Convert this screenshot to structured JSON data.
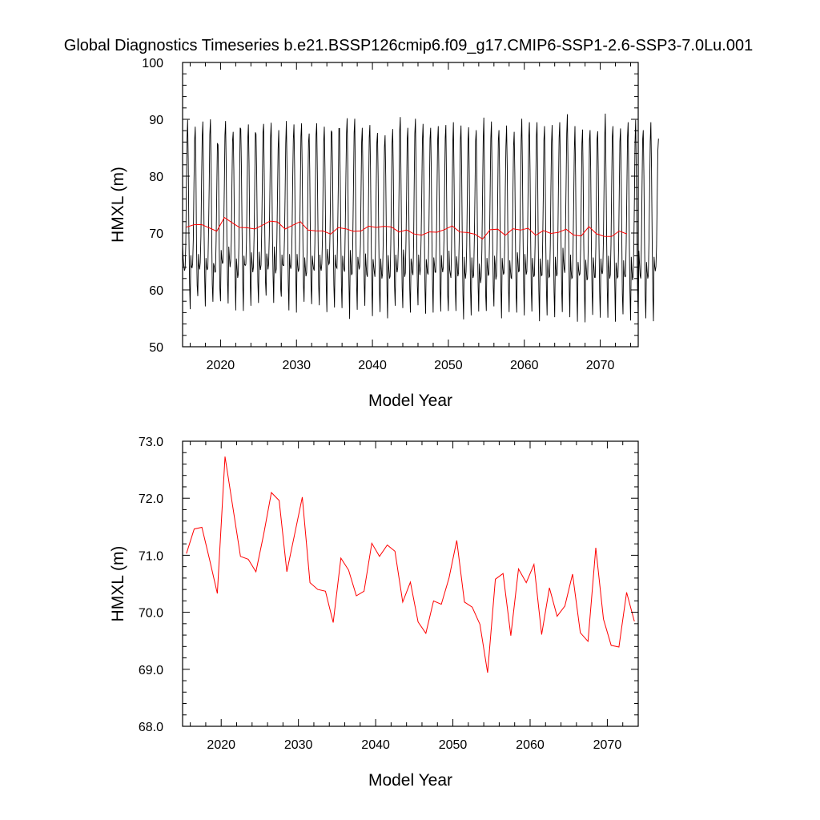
{
  "title": "Global Diagnostics Timeseries b.e21.BSSP126cmip6.f09_g17.CMIP6-SSP1-2.6-SSP3-7.0Lu.001",
  "chart_data": [
    {
      "type": "line",
      "xlabel": "Model Year",
      "ylabel": "HMXL (m)",
      "xlim": [
        2015,
        2075
      ],
      "ylim": [
        50,
        100
      ],
      "xticks": [
        2020,
        2030,
        2040,
        2050,
        2060,
        2070
      ],
      "yticks": [
        50,
        60,
        70,
        80,
        90,
        100
      ],
      "ytick_labels": [
        "50",
        "60",
        "70",
        "80",
        "90",
        "100"
      ],
      "grid": false,
      "series": [
        {
          "color": "#000000",
          "resolution": "monthly",
          "x_start": 2015.0,
          "x_step": 0.0833333,
          "values": [
            68.1,
            65.5,
            64.2,
            63.4,
            63.8,
            68.0,
            77.6,
            86.4,
            89.9,
            82.5,
            69.9,
            61.2,
            56.6,
            66.1,
            64.0,
            63.9,
            64.6,
            68.9,
            78.5,
            86.2,
            88.7,
            82.4,
            68.2,
            60.8,
            58.9,
            66.3,
            64.3,
            63.6,
            64.8,
            69.4,
            79.0,
            86.9,
            89.6,
            80.8,
            69.7,
            61.5,
            57.1,
            65.6,
            64.0,
            63.5,
            64.0,
            70.1,
            77.8,
            87.3,
            90.0,
            82.2,
            69.5,
            60.9,
            57.9,
            64.7,
            64.2,
            63.1,
            63.2,
            68.7,
            77.5,
            85.8,
            85.5,
            79.0,
            67.3,
            60.2,
            58.0,
            67.0,
            65.5,
            64.6,
            64.9,
            70.8,
            78.8,
            87.2,
            89.7,
            81.5,
            69.4,
            61.8,
            57.6,
            67.6,
            65.7,
            64.0,
            65.1,
            68.8,
            78.0,
            86.2,
            87.8,
            81.2,
            70.2,
            62.3,
            56.4,
            65.5,
            63.9,
            62.1,
            62.7,
            67.6,
            78.1,
            88.5,
            88.3,
            81.4,
            70.2,
            61.3,
            56.3,
            66.0,
            64.5,
            64.3,
            64.5,
            68.7,
            77.5,
            86.4,
            89.1,
            82.3,
            70.2,
            60.7,
            57.2,
            66.6,
            64.7,
            63.1,
            64.0,
            69.5,
            78.0,
            87.7,
            87.4,
            81.2,
            70.1,
            61.4,
            57.7,
            66.7,
            64.6,
            63.5,
            64.4,
            70.3,
            78.9,
            87.7,
            89.2,
            81.1,
            70.0,
            61.5,
            59.0,
            66.4,
            65.4,
            63.6,
            64.6,
            69.6,
            77.9,
            86.6,
            89.4,
            81.8,
            70.0,
            62.5,
            57.7,
            67.6,
            65.6,
            62.9,
            63.7,
            69.2,
            76.5,
            84.7,
            88.1,
            80.6,
            67.9,
            60.2,
            58.8,
            66.2,
            64.5,
            64.3,
            64.3,
            68.8,
            76.3,
            85.7,
            89.7,
            81.8,
            70.3,
            61.1,
            56.4,
            66.3,
            64.4,
            63.7,
            64.4,
            69.9,
            79.3,
            86.5,
            89.1,
            81.7,
            70.3,
            61.7,
            56.0,
            66.3,
            64.4,
            63.2,
            63.7,
            68.7,
            77.5,
            87.0,
            89.3,
            81.0,
            69.2,
            61.0,
            57.9,
            65.7,
            64.0,
            62.4,
            63.0,
            68.2,
            78.3,
            86.0,
            87.5,
            81.1,
            69.0,
            60.7,
            57.5,
            66.0,
            64.6,
            63.7,
            63.4,
            68.2,
            79.1,
            87.3,
            89.3,
            80.6,
            70.5,
            60.9,
            57.3,
            66.2,
            64.0,
            63.4,
            64.6,
            69.3,
            77.8,
            86.0,
            88.7,
            81.6,
            70.1,
            60.8,
            56.1,
            67.2,
            65.7,
            64.5,
            64.7,
            69.9,
            78.8,
            88.0,
            87.7,
            81.3,
            69.2,
            60.8,
            56.9,
            66.2,
            64.6,
            64.0,
            63.8,
            69.8,
            77.8,
            88.4,
            88.4,
            80.3,
            69.8,
            60.4,
            56.8,
            66.0,
            64.4,
            63.6,
            63.2,
            70.4,
            79.3,
            87.5,
            90.2,
            82.1,
            69.1,
            60.9,
            54.9,
            67.0,
            65.0,
            62.6,
            62.9,
            69.2,
            78.3,
            87.6,
            90.1,
            81.0,
            68.7,
            61.1,
            56.5,
            65.8,
            64.7,
            63.6,
            64.2,
            68.0,
            77.6,
            86.0,
            88.5,
            80.4,
            69.5,
            61.3,
            57.2,
            66.4,
            64.3,
            62.7,
            62.3,
            68.5,
            77.4,
            86.8,
            89.0,
            81.1,
            69.4,
            60.6,
            55.4,
            65.4,
            64.2,
            63.0,
            62.3,
            68.5,
            78.1,
            85.9,
            87.6,
            80.1,
            68.8,
            60.1,
            56.1,
            65.5,
            63.9,
            62.0,
            62.8,
            68.1,
            77.4,
            85.1,
            87.2,
            80.1,
            69.1,
            59.6,
            55.0,
            66.1,
            63.7,
            62.0,
            62.4,
            68.0,
            76.9,
            85.8,
            88.3,
            80.4,
            68.6,
            60.6,
            57.2,
            66.2,
            64.4,
            63.1,
            63.9,
            68.1,
            77.5,
            87.9,
            90.4,
            82.1,
            69.5,
            60.4,
            56.8,
            67.1,
            65.5,
            62.3,
            63.0,
            68.6,
            77.2,
            86.5,
            88.5,
            80.2,
            69.0,
            60.1,
            56.0,
            65.5,
            64.7,
            63.1,
            62.6,
            68.0,
            78.0,
            87.5,
            90.1,
            81.6,
            68.8,
            60.7,
            57.3,
            66.2,
            64.1,
            62.6,
            63.8,
            69.2,
            77.2,
            86.4,
            89.2,
            81.8,
            69.8,
            60.2,
            55.8,
            65.4,
            64.3,
            63.0,
            62.7,
            68.3,
            77.3,
            86.6,
            88.5,
            80.8,
            68.4,
            60.4,
            56.0,
            65.7,
            64.5,
            63.1,
            63.1,
            67.8,
            76.9,
            86.3,
            88.8,
            80.4,
            68.9,
            60.2,
            56.2,
            66.1,
            64.1,
            63.1,
            64.0,
            68.7,
            78.0,
            86.7,
            89.0,
            80.3,
            67.8,
            59.1,
            56.3,
            66.9,
            63.6,
            62.8,
            62.1,
            67.6,
            77.2,
            85.6,
            89.5,
            79.8,
            68.8,
            60.2,
            56.3,
            65.9,
            64.4,
            62.4,
            63.0,
            68.6,
            76.6,
            86.3,
            88.9,
            81.4,
            68.5,
            59.2,
            54.8,
            65.8,
            63.1,
            62.0,
            63.2,
            67.7,
            76.7,
            86.2,
            88.6,
            80.4,
            67.9,
            59.8,
            55.5,
            65.7,
            63.3,
            62.1,
            62.6,
            68.6,
            76.7,
            86.2,
            88.1,
            80.6,
            68.7,
            60.5,
            56.2,
            64.6,
            62.8,
            61.2,
            62.4,
            67.3,
            76.8,
            86.2,
            90.3,
            80.9,
            68.3,
            59.1,
            56.3,
            65.6,
            64.0,
            62.5,
            62.8,
            68.5,
            77.4,
            86.6,
            89.6,
            81.3,
            68.6,
            60.4,
            57.1,
            66.0,
            64.5,
            61.8,
            62.5,
            67.2,
            77.3,
            86.3,
            88.1,
            80.4,
            67.7,
            60.3,
            55.0,
            65.6,
            64.0,
            62.7,
            63.0,
            68.1,
            77.6,
            85.3,
            88.9,
            81.9,
            69.6,
            60.5,
            56.1,
            65.2,
            63.5,
            62.1,
            62.0,
            67.2,
            76.4,
            85.2,
            87.8,
            80.6,
            68.6,
            59.2,
            56.0,
            66.6,
            65.3,
            63.2,
            63.3,
            68.9,
            76.9,
            86.3,
            90.1,
            81.5,
            69.0,
            60.3,
            55.5,
            66.3,
            64.5,
            62.7,
            63.2,
            68.3,
            77.9,
            86.6,
            89.5,
            81.2,
            68.7,
            60.2,
            56.2,
            65.6,
            63.7,
            62.3,
            62.6,
            67.8,
            77.7,
            86.9,
            89.5,
            82.4,
            69.0,
            59.8,
            54.5,
            65.5,
            63.8,
            62.5,
            62.6,
            68.6,
            77.0,
            86.3,
            88.8,
            80.4,
            67.9,
            59.9,
            55.5,
            65.3,
            63.1,
            62.2,
            62.4,
            67.9,
            77.0,
            85.8,
            89.0,
            81.4,
            68.3,
            59.6,
            55.2,
            65.8,
            63.7,
            62.4,
            62.8,
            68.4,
            78.4,
            86.7,
            89.5,
            81.7,
            68.7,
            60.0,
            56.1,
            67.4,
            65.2,
            63.7,
            63.0,
            69.9,
            78.2,
            87.5,
            90.9,
            82.1,
            69.8,
            59.9,
            55.2,
            66.2,
            63.4,
            62.0,
            62.2,
            67.1,
            75.3,
            84.5,
            88.8,
            80.1,
            67.4,
            59.7,
            54.4,
            64.9,
            63.5,
            62.6,
            62.8,
            67.4,
            76.5,
            85.8,
            88.2,
            80.1,
            67.9,
            59.8,
            54.3,
            65.3,
            63.7,
            61.7,
            62.0,
            67.7,
            75.4,
            86.4,
            88.1,
            80.7,
            67.6,
            60.0,
            55.6,
            65.7,
            64.0,
            62.2,
            62.2,
            67.6,
            77.1,
            86.5,
            87.9,
            80.1,
            68.3,
            59.7,
            55.1,
            65.5,
            63.5,
            62.8,
            63.3,
            68.5,
            77.9,
            86.5,
            91.0,
            81.3,
            69.7,
            60.3,
            55.1,
            66.0,
            64.1,
            62.0,
            62.7,
            67.9,
            77.9,
            86.8,
            88.8,
            80.8,
            67.3,
            60.3,
            54.4,
            64.8,
            63.6,
            62.1,
            62.3,
            67.4,
            77.1,
            86.1,
            88.4,
            80.3,
            69.0,
            59.2,
            55.7,
            65.2,
            62.8,
            62.3,
            62.4,
            68.4,
            77.3,
            86.9,
            89.5,
            80.4,
            67.9,
            59.5,
            54.6,
            65.8,
            63.5,
            61.7,
            62.4,
            67.7,
            76.6,
            85.8,
            89.9,
            80.7,
            68.6,
            59.8,
            55.1,
            66.9,
            64.7,
            62.5,
            62.0,
            68.2,
            77.2,
            86.4,
            88.1,
            80.1,
            68.2,
            59.1,
            55.0,
            64.9,
            63.3,
            62.0,
            62.5,
            68.5,
            76.6,
            86.1,
            89.5,
            81.4,
            69.1,
            59.2,
            54.5,
            65.8,
            64.3,
            63.3,
            64.1,
            67.7,
            76.2,
            84.4,
            86.6
          ]
        },
        {
          "color": "#ff0000",
          "resolution": "annual",
          "x": [
            2015.5,
            2016.5,
            2017.5,
            2018.5,
            2019.5,
            2020.5,
            2021.5,
            2022.5,
            2023.5,
            2024.5,
            2025.5,
            2026.5,
            2027.5,
            2028.5,
            2029.5,
            2030.5,
            2031.5,
            2032.5,
            2033.5,
            2034.5,
            2035.5,
            2036.5,
            2037.5,
            2038.5,
            2039.5,
            2040.5,
            2041.5,
            2042.5,
            2043.5,
            2044.5,
            2045.5,
            2046.5,
            2047.5,
            2048.5,
            2049.5,
            2050.5,
            2051.5,
            2052.5,
            2053.5,
            2054.5,
            2055.5,
            2056.5,
            2057.5,
            2058.5,
            2059.5,
            2060.5,
            2061.5,
            2062.5,
            2063.5,
            2064.5,
            2065.5,
            2066.5,
            2067.5,
            2068.5,
            2069.5,
            2070.5,
            2071.5,
            2072.5,
            2073.5
          ],
          "values": [
            71.03,
            71.46,
            71.49,
            70.92,
            70.33,
            72.73,
            71.85,
            70.98,
            70.93,
            70.71,
            71.37,
            72.1,
            71.96,
            70.71,
            71.36,
            72.02,
            70.52,
            70.4,
            70.37,
            69.82,
            70.95,
            70.74,
            70.29,
            70.37,
            71.21,
            70.98,
            71.18,
            71.07,
            70.18,
            70.53,
            69.83,
            69.63,
            70.2,
            70.14,
            70.6,
            71.26,
            70.18,
            70.09,
            69.79,
            68.94,
            70.58,
            70.68,
            69.59,
            70.76,
            70.52,
            70.84,
            69.61,
            70.43,
            69.93,
            70.11,
            70.67,
            69.64,
            69.49,
            71.13,
            69.88,
            69.42,
            69.39,
            70.35,
            69.84
          ]
        }
      ]
    },
    {
      "type": "line",
      "xlabel": "Model Year",
      "ylabel": "HMXL (m)",
      "xlim": [
        2015,
        2074
      ],
      "ylim": [
        68.0,
        73.0
      ],
      "xticks": [
        2020,
        2030,
        2040,
        2050,
        2060,
        2070
      ],
      "yticks": [
        68.0,
        69.0,
        70.0,
        71.0,
        72.0,
        73.0
      ],
      "ytick_labels": [
        "68.0",
        "69.0",
        "70.0",
        "71.0",
        "72.0",
        "73.0"
      ],
      "grid": false,
      "series": [
        {
          "color": "#ff0000",
          "resolution": "annual",
          "x": [
            2015.5,
            2016.5,
            2017.5,
            2018.5,
            2019.5,
            2020.5,
            2021.5,
            2022.5,
            2023.5,
            2024.5,
            2025.5,
            2026.5,
            2027.5,
            2028.5,
            2029.5,
            2030.5,
            2031.5,
            2032.5,
            2033.5,
            2034.5,
            2035.5,
            2036.5,
            2037.5,
            2038.5,
            2039.5,
            2040.5,
            2041.5,
            2042.5,
            2043.5,
            2044.5,
            2045.5,
            2046.5,
            2047.5,
            2048.5,
            2049.5,
            2050.5,
            2051.5,
            2052.5,
            2053.5,
            2054.5,
            2055.5,
            2056.5,
            2057.5,
            2058.5,
            2059.5,
            2060.5,
            2061.5,
            2062.5,
            2063.5,
            2064.5,
            2065.5,
            2066.5,
            2067.5,
            2068.5,
            2069.5,
            2070.5,
            2071.5,
            2072.5,
            2073.5
          ],
          "values": [
            71.03,
            71.46,
            71.49,
            70.92,
            70.33,
            72.73,
            71.85,
            70.98,
            70.93,
            70.71,
            71.37,
            72.1,
            71.96,
            70.71,
            71.36,
            72.02,
            70.52,
            70.4,
            70.37,
            69.82,
            70.95,
            70.74,
            70.29,
            70.37,
            71.21,
            70.98,
            71.18,
            71.07,
            70.18,
            70.53,
            69.83,
            69.63,
            70.2,
            70.14,
            70.6,
            71.26,
            70.18,
            70.09,
            69.79,
            68.94,
            70.58,
            70.68,
            69.59,
            70.76,
            70.52,
            70.84,
            69.61,
            70.43,
            69.93,
            70.11,
            70.67,
            69.64,
            69.49,
            71.13,
            69.88,
            69.42,
            69.39,
            70.35,
            69.84
          ]
        }
      ]
    }
  ]
}
